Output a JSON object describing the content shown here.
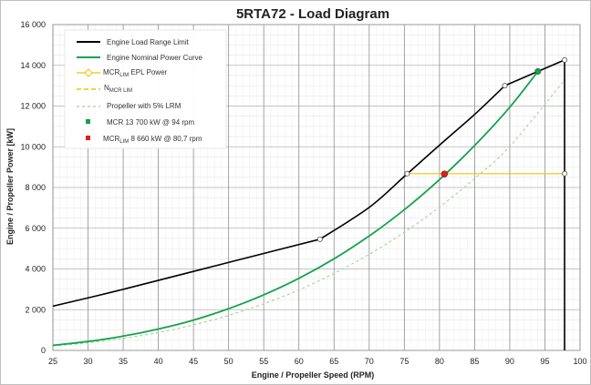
{
  "chart_data": {
    "type": "line",
    "title": "5RTA72 - Load Diagram",
    "xlabel": "Engine / Propeller Speed (RPM)",
    "ylabel": "Engine / Propeller Power [kW]",
    "xlim": [
      25,
      100
    ],
    "ylim": [
      0,
      16000
    ],
    "xticks": [
      "25",
      "30",
      "35",
      "40",
      "45",
      "50",
      "55",
      "60",
      "65",
      "70",
      "75",
      "80",
      "85",
      "90",
      "95",
      "100"
    ],
    "yticks": [
      "0",
      "2 000",
      "4 000",
      "6 000",
      "8 000",
      "10 000",
      "12 000",
      "14 000",
      "16 000"
    ],
    "grid": true,
    "legend_position": "top-left",
    "colors": {
      "load_range": "#000000",
      "nominal": "#16a34a",
      "epl": "#f2c300",
      "n_mcr": "#f2c300",
      "propeller": "#a3d39c",
      "mcr_point": "#1a9e4a",
      "mcr_lim_point": "#e11d1d"
    },
    "series": [
      {
        "name": "Engine Load Range Limit",
        "x": [
          25,
          63,
          89.3,
          97.8,
          97.8
        ],
        "y": [
          2170,
          5460,
          13000,
          14260,
          0
        ]
      },
      {
        "name": "Engine Nominal Power Curve",
        "x": [
          25,
          30,
          35,
          40,
          45,
          50,
          55,
          60,
          65,
          70,
          75,
          80,
          85,
          90,
          94
        ],
        "y": [
          250,
          440,
          700,
          1050,
          1490,
          2050,
          2730,
          3540,
          4500,
          5620,
          6910,
          8390,
          10060,
          11940,
          13700
        ]
      },
      {
        "name": "EPL Power",
        "x": [
          75.4,
          97.8
        ],
        "y": [
          8680,
          8680
        ]
      },
      {
        "name": "Propeller with 5% LRM",
        "x": [
          25,
          30,
          35,
          40,
          45,
          50,
          55,
          60,
          65,
          70,
          75,
          80,
          85,
          90,
          97.8
        ],
        "y": [
          220,
          370,
          590,
          880,
          1250,
          1720,
          2290,
          2970,
          3780,
          4720,
          5800,
          7040,
          8440,
          10020,
          13280
        ]
      }
    ],
    "points": [
      {
        "name": "MCR 13 700 kW @ 94 rpm",
        "x": 94,
        "y": 13700
      },
      {
        "name": "MCRLIM 8 660 kW @ 80,7 rpm",
        "x": 80.7,
        "y": 8660
      }
    ],
    "markers_hollow": [
      {
        "x": 63,
        "y": 5460
      },
      {
        "x": 89.3,
        "y": 13000
      },
      {
        "x": 97.8,
        "y": 14260
      },
      {
        "x": 75.4,
        "y": 8680
      },
      {
        "x": 97.8,
        "y": 8680
      }
    ],
    "legend": {
      "load_range": "Engine Load Range Limit",
      "nominal": "Engine Nominal Power Curve",
      "epl_pre": "MCR",
      "epl_sub": "LIM",
      "epl_post": " EPL Power",
      "n_pre": "N",
      "n_sub": "MCR LIM",
      "propeller": "Propeller with 5% LRM",
      "mcr_point": "MCR 13 700 kW @ 94 rpm",
      "mcr_lim_pre": "MCR",
      "mcr_lim_sub": "LIM",
      "mcr_lim_post": " 8 660 kW @ 80,7 rpm"
    }
  }
}
